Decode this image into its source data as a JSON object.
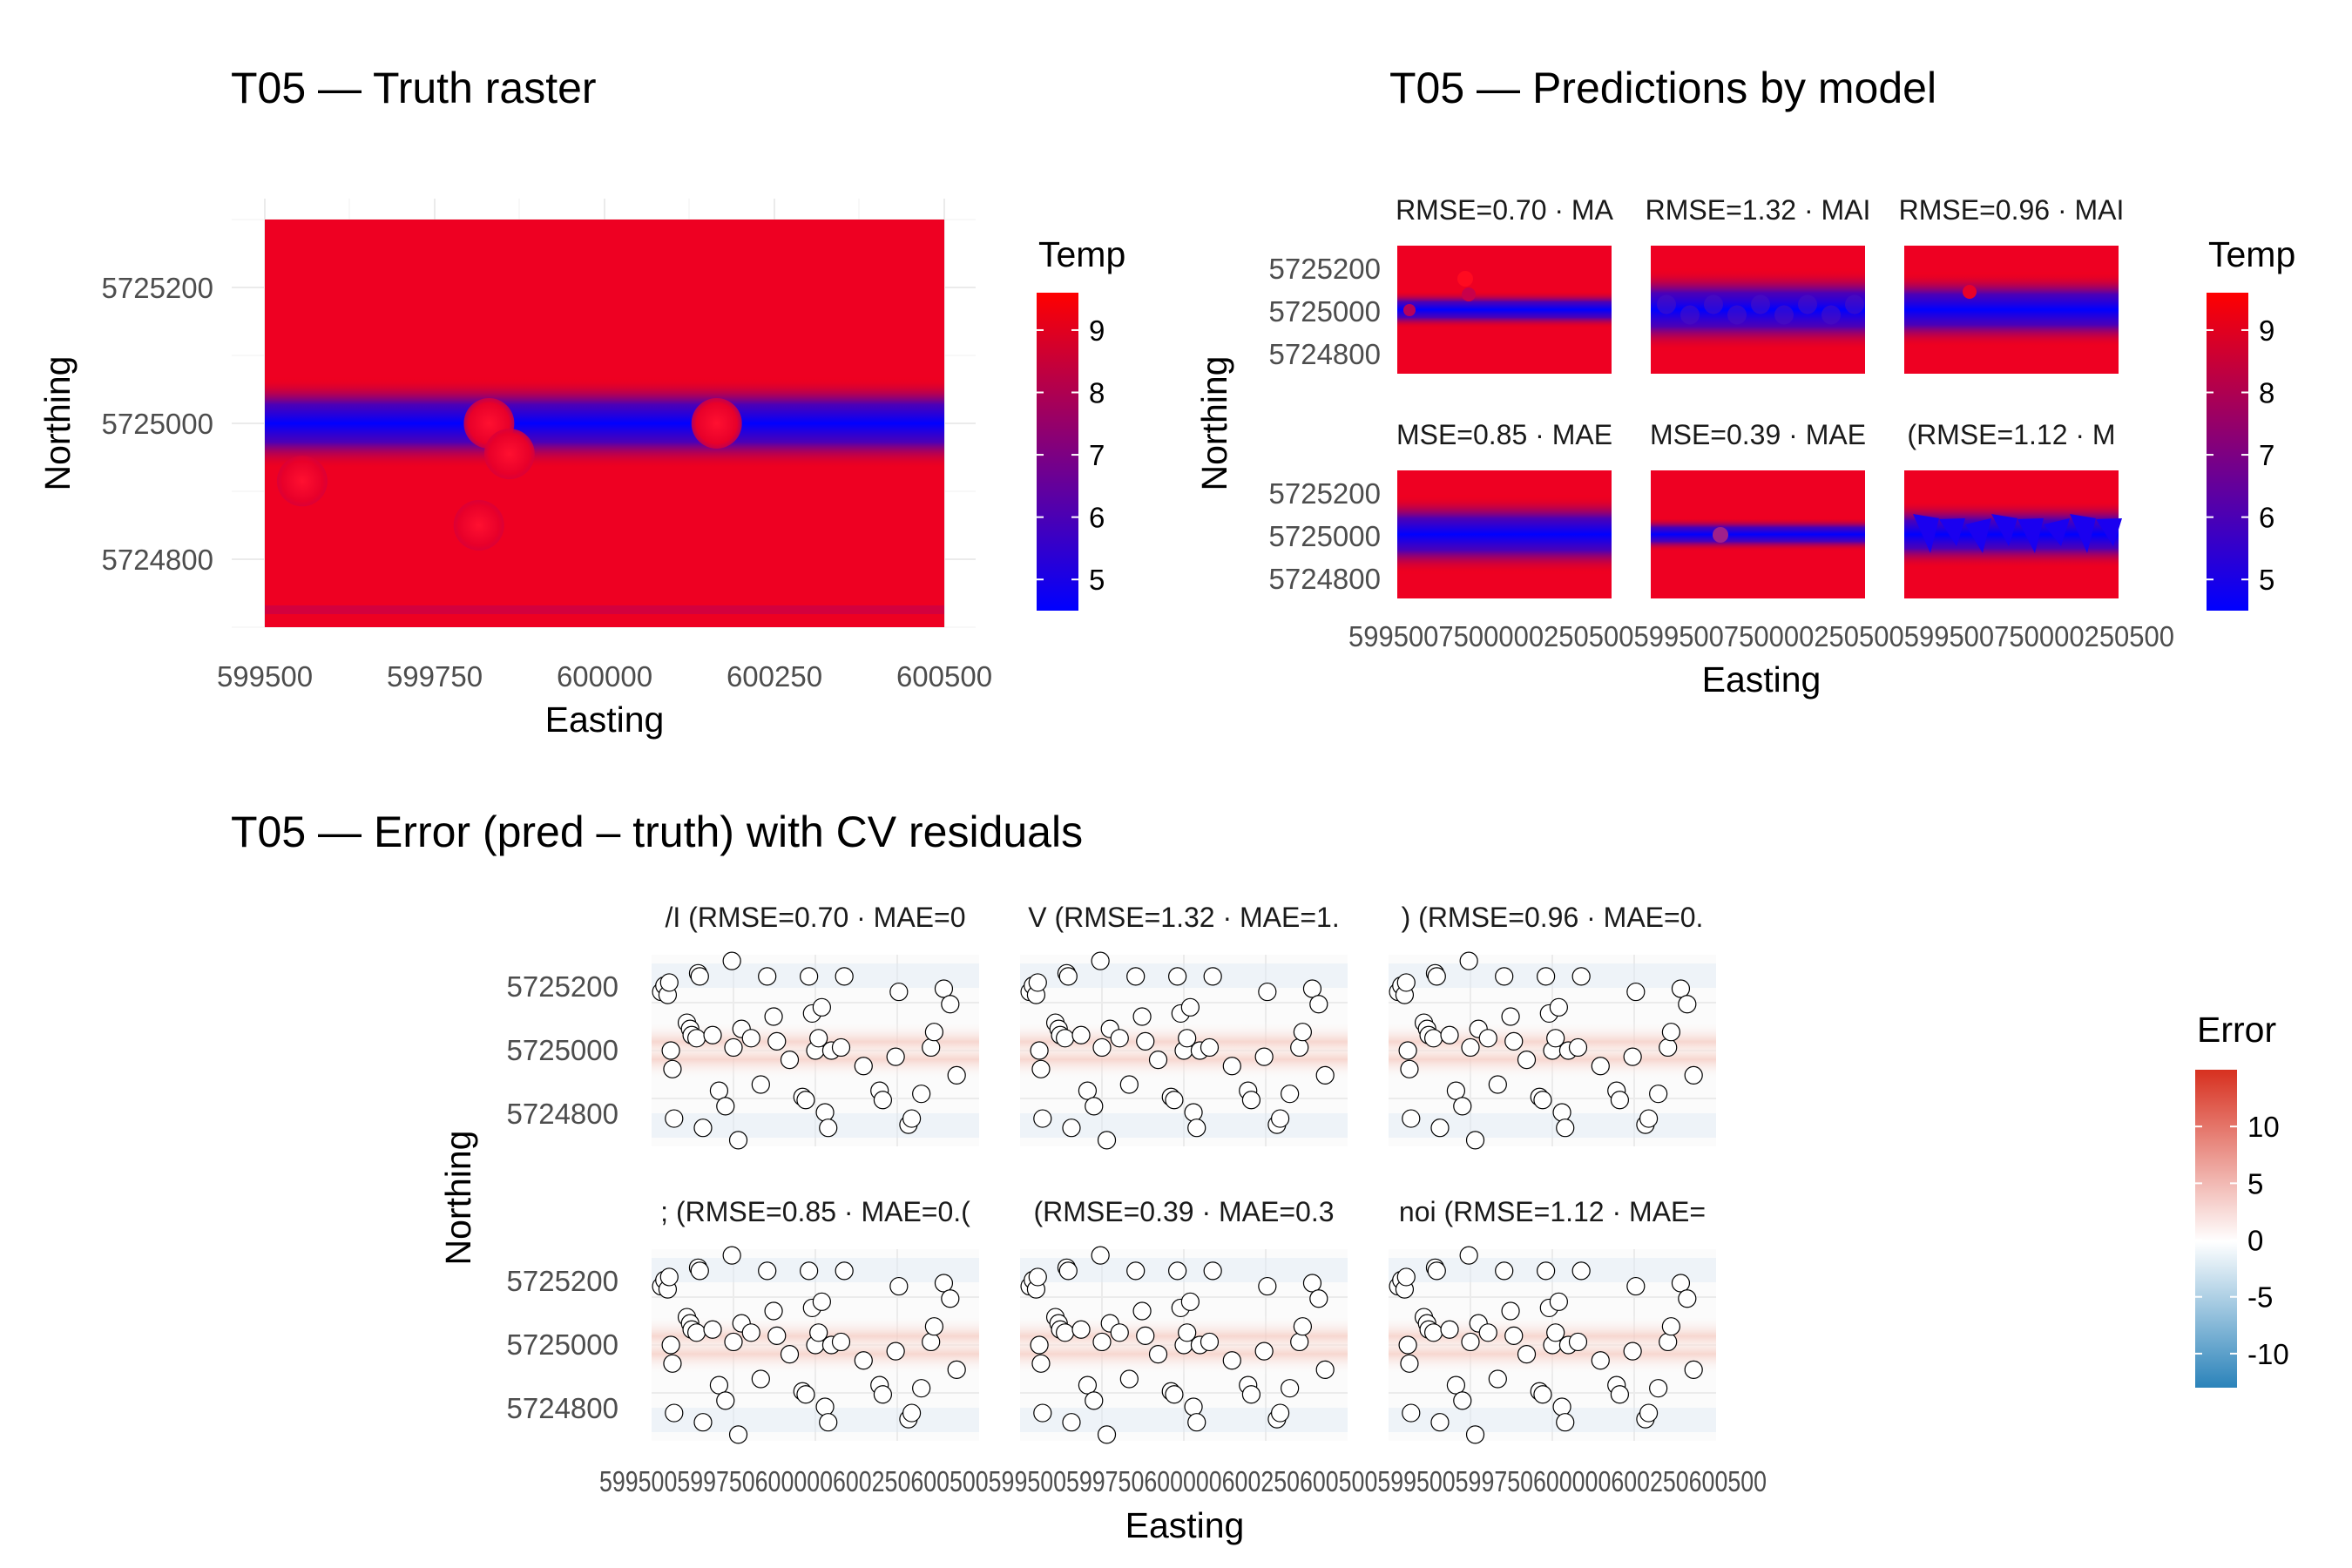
{
  "chart_data": [
    {
      "type": "heatmap",
      "title": "T05 — Truth raster",
      "xlabel": "Easting",
      "ylabel": "Northing",
      "xlim": [
        599500,
        600500
      ],
      "ylim": [
        5724700,
        5725300
      ],
      "x_ticks": [
        "599500",
        "599750",
        "600000",
        "600250",
        "600500"
      ],
      "y_ticks": [
        "5724800",
        "5725000",
        "5725200"
      ],
      "legend": {
        "title": "Temp",
        "ticks": [
          "5",
          "6",
          "7",
          "8",
          "9"
        ],
        "range": [
          4.5,
          9.6
        ],
        "colors": [
          "#0000ff",
          "#ff0000"
        ],
        "position": "right"
      },
      "field": {
        "base": 9.3,
        "band_center_y": 5725000,
        "band_min": 4.6
      },
      "hotspots": [
        {
          "x": 599555,
          "y": 5724915
        },
        {
          "x": 599830,
          "y": 5725000
        },
        {
          "x": 599860,
          "y": 5724955
        },
        {
          "x": 599815,
          "y": 5724850
        },
        {
          "x": 600165,
          "y": 5725000
        }
      ]
    },
    {
      "type": "heatmap",
      "title": "T05 — Predictions by model",
      "xlabel": "Easting",
      "ylabel": "Northing",
      "x_tick_labels_run": "5995007500000250500599500750000250500599500750000250500",
      "y_ticks": [
        "5725200",
        "5725000",
        "5724800"
      ],
      "legend": {
        "title": "Temp",
        "ticks": [
          "5",
          "6",
          "7",
          "8",
          "9"
        ],
        "range": [
          4.5,
          9.6
        ],
        "colors": [
          "#0000ff",
          "#ff0000"
        ],
        "position": "right"
      },
      "panels": [
        {
          "label": "RMSE=0.70 · MA"
        },
        {
          "label": "RMSE=1.32 · MAI"
        },
        {
          "label": "RMSE=0.96 · MAI"
        },
        {
          "label": "MSE=0.85 · MAE"
        },
        {
          "label": "MSE=0.39 · MAE"
        },
        {
          "label": "(RMSE=1.12 · M"
        }
      ]
    },
    {
      "type": "heatmap",
      "title": "T05 — Error (pred – truth) with CV residuals",
      "xlabel": "Easting",
      "ylabel": "Northing",
      "x_tick_labels_run": "599500599750600000600250600500599500599750600000600250600500599500599750600000600250600500",
      "y_ticks": [
        "5725200",
        "5725000",
        "5724800"
      ],
      "legend": {
        "title": "Error",
        "ticks": [
          "10",
          "5",
          "0",
          "-5",
          "-10"
        ],
        "range": [
          -13,
          15
        ],
        "colors": [
          "#2b83ba",
          "#ffffff",
          "#d7301f"
        ],
        "position": "right"
      },
      "panels": [
        {
          "label": "/I  (RMSE=0.70 · MAE=0"
        },
        {
          "label": "V  (RMSE=1.32 · MAE=1."
        },
        {
          "label": ")  (RMSE=0.96 · MAE=0."
        },
        {
          "label": ";  (RMSE=0.85 · MAE=0.("
        },
        {
          "label": "  (RMSE=0.39 · MAE=0.3"
        },
        {
          "label": "noi  (RMSE=1.12 · MAE="
        }
      ],
      "cv_points": [
        [
          599520,
          5725180
        ],
        [
          599530,
          5725200
        ],
        [
          599540,
          5725170
        ],
        [
          599545,
          5725210
        ],
        [
          599550,
          5724990
        ],
        [
          599555,
          5724930
        ],
        [
          599560,
          5724770
        ],
        [
          599600,
          5725080
        ],
        [
          599610,
          5725060
        ],
        [
          599615,
          5725040
        ],
        [
          599630,
          5725030
        ],
        [
          599635,
          5725240
        ],
        [
          599640,
          5725230
        ],
        [
          599650,
          5724740
        ],
        [
          599680,
          5725040
        ],
        [
          599700,
          5724860
        ],
        [
          599720,
          5724810
        ],
        [
          599740,
          5725280
        ],
        [
          599745,
          5725000
        ],
        [
          599760,
          5724700
        ],
        [
          599770,
          5725060
        ],
        [
          599800,
          5725030
        ],
        [
          599830,
          5724880
        ],
        [
          599850,
          5725230
        ],
        [
          599870,
          5725100
        ],
        [
          599880,
          5725020
        ],
        [
          599920,
          5724960
        ],
        [
          599960,
          5724840
        ],
        [
          599970,
          5724830
        ],
        [
          599980,
          5725230
        ],
        [
          599990,
          5725110
        ],
        [
          600000,
          5724990
        ],
        [
          600010,
          5725030
        ],
        [
          600020,
          5725130
        ],
        [
          600030,
          5724790
        ],
        [
          600040,
          5724740
        ],
        [
          600050,
          5724990
        ],
        [
          600080,
          5725000
        ],
        [
          600090,
          5725230
        ],
        [
          600150,
          5724940
        ],
        [
          600200,
          5724860
        ],
        [
          600210,
          5724830
        ],
        [
          600250,
          5724970
        ],
        [
          600260,
          5725180
        ],
        [
          600290,
          5724750
        ],
        [
          600300,
          5724770
        ],
        [
          600330,
          5724850
        ],
        [
          600360,
          5725000
        ],
        [
          600370,
          5725050
        ],
        [
          600400,
          5725190
        ],
        [
          600420,
          5725140
        ],
        [
          600440,
          5724910
        ]
      ]
    }
  ]
}
